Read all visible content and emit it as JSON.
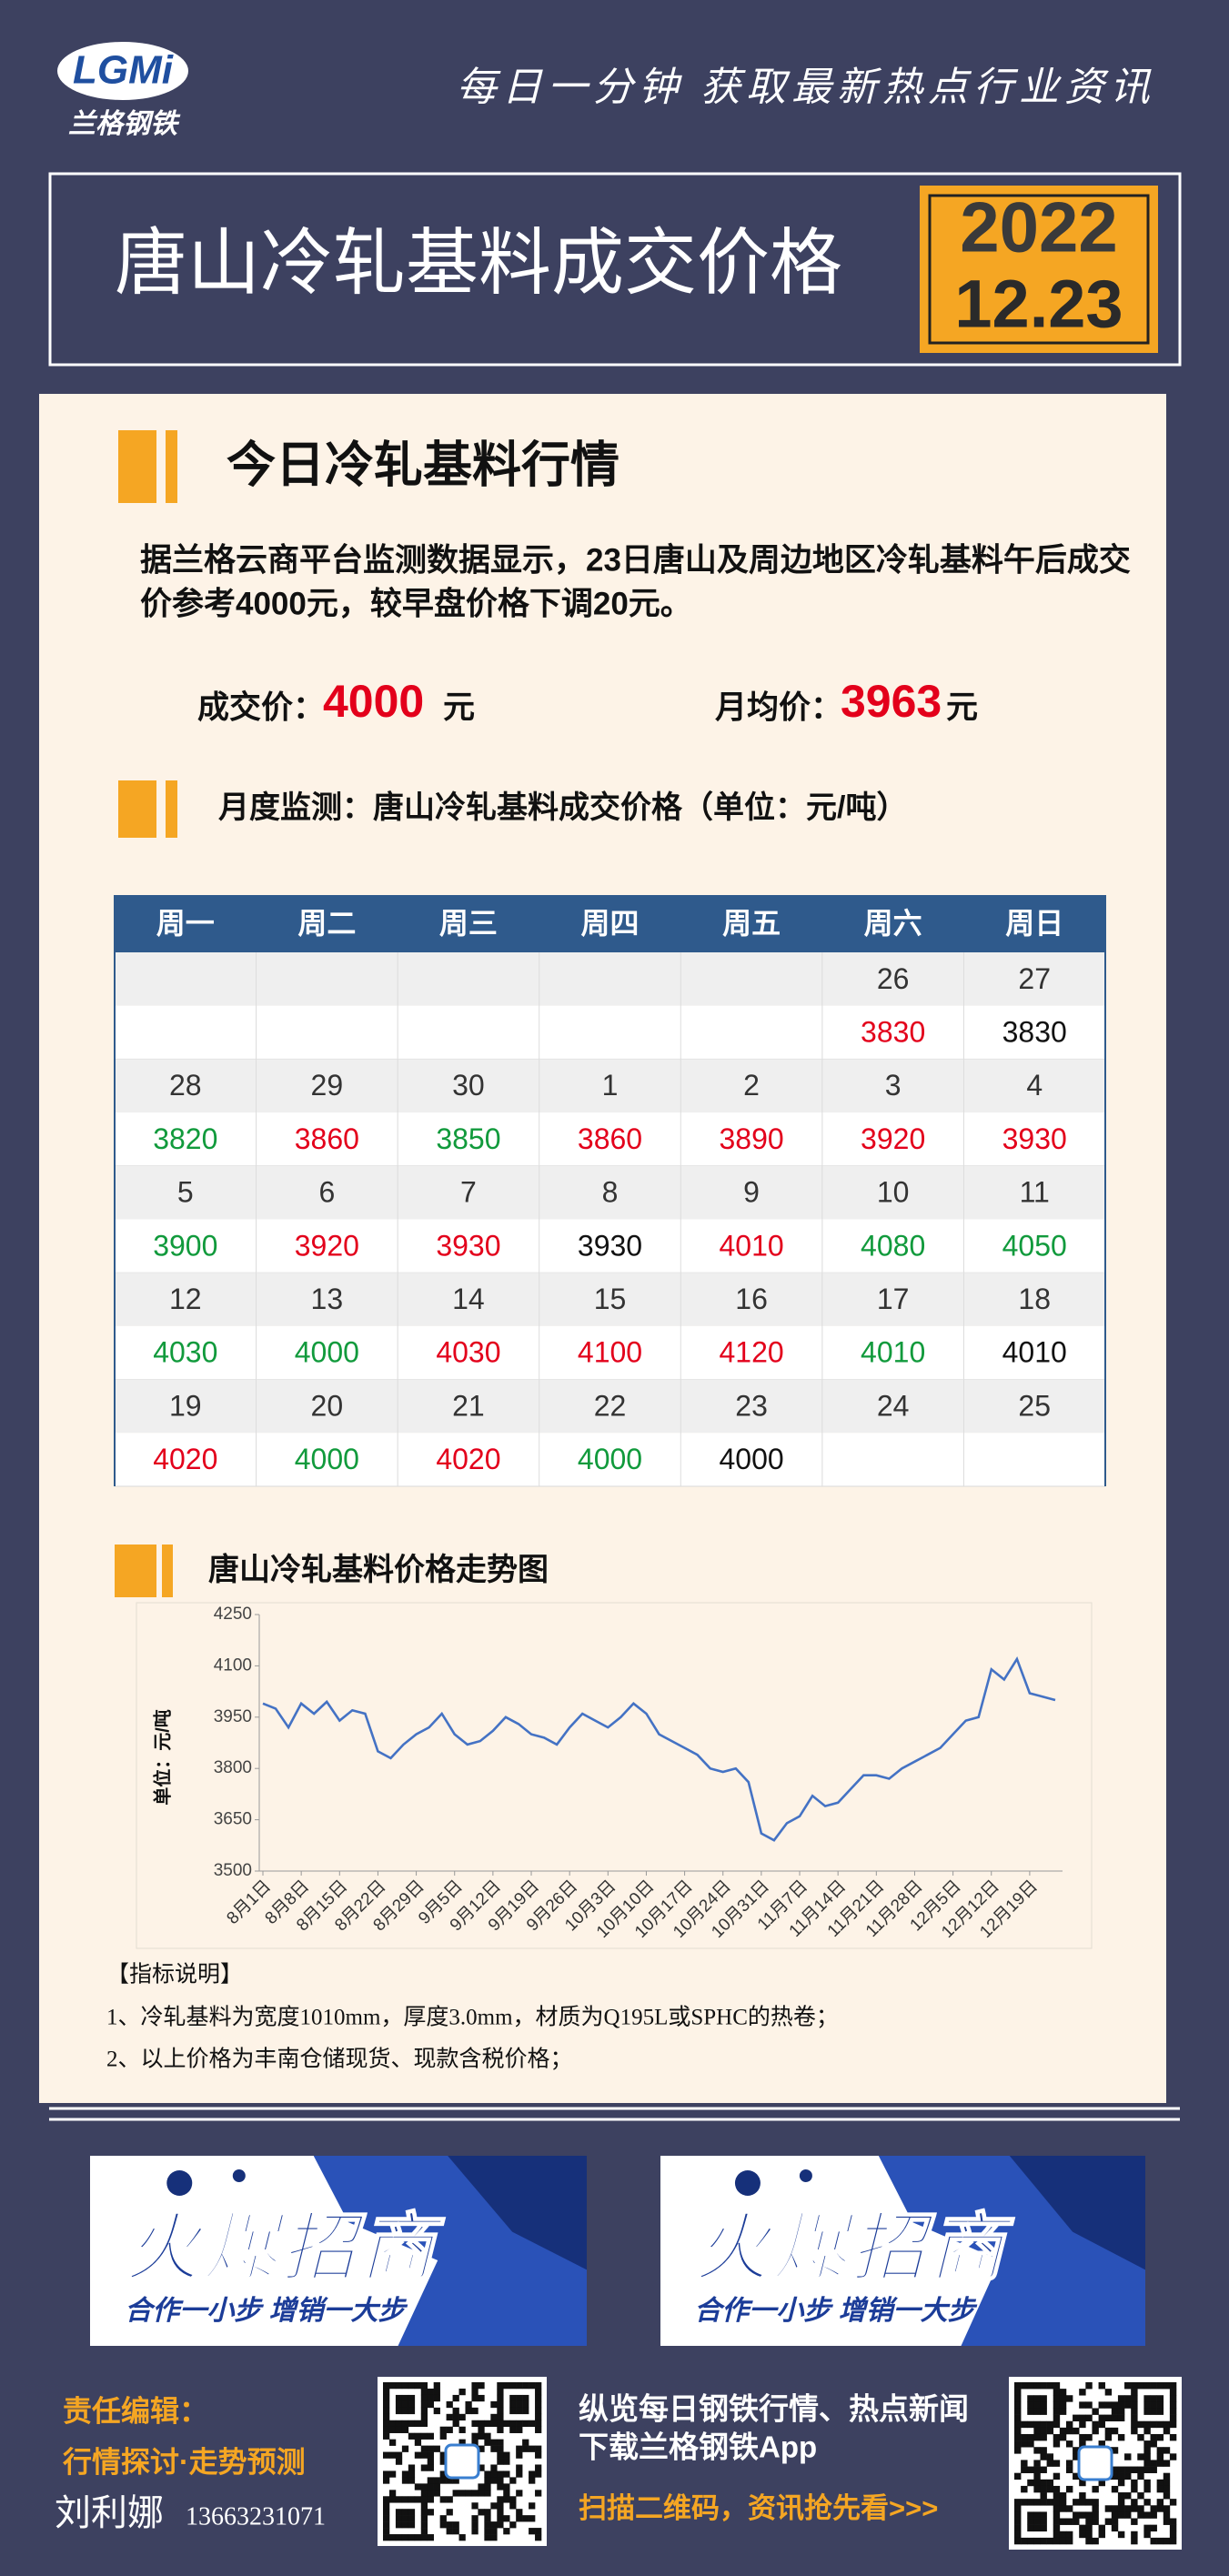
{
  "header": {
    "logo": "LGMi",
    "brand": "兰格钢铁",
    "slogan": "每日一分钟  获取最新热点行业资讯",
    "title": "唐山冷轧基料成交价格",
    "year": "2022",
    "date": "12.23"
  },
  "market": {
    "heading": "今日冷轧基料行情",
    "text": [
      "据兰格云商平台监测数据显示，23日唐山及周边地区冷轧基料午后成交",
      "价参考4000元，较早盘价格下调20元。"
    ],
    "deal": {
      "label": "成交价：",
      "value": 4000,
      "unit": "元"
    },
    "average": {
      "label": "月均价：",
      "value": 3963,
      "unit": "元"
    }
  },
  "table": {
    "heading": "月度监测：唐山冷轧基料成交价格（单位：元/吨）",
    "columns": [
      "周一",
      "周二",
      "周三",
      "周四",
      "周五",
      "周六",
      "周日"
    ],
    "weeks": [
      {
        "days": [
          null,
          null,
          null,
          null,
          null,
          26,
          27
        ],
        "prices": [
          null,
          null,
          null,
          null,
          null,
          3830,
          3830
        ],
        "colors": [
          null,
          null,
          null,
          null,
          null,
          "#e3001b",
          "#111111"
        ]
      },
      {
        "days": [
          28,
          29,
          30,
          1,
          2,
          3,
          4
        ],
        "prices": [
          3820,
          3860,
          3850,
          3860,
          3890,
          3920,
          3930
        ],
        "colors": [
          "#119a3c",
          "#e3001b",
          "#119a3c",
          "#e3001b",
          "#e3001b",
          "#e3001b",
          "#e3001b"
        ]
      },
      {
        "days": [
          5,
          6,
          7,
          8,
          9,
          10,
          11
        ],
        "prices": [
          3900,
          3920,
          3930,
          3930,
          4010,
          4080,
          4050
        ],
        "colors": [
          "#119a3c",
          "#e3001b",
          "#e3001b",
          "#111111",
          "#e3001b",
          "#119a3c",
          "#119a3c"
        ]
      },
      {
        "days": [
          12,
          13,
          14,
          15,
          16,
          17,
          18
        ],
        "prices": [
          4030,
          4000,
          4030,
          4100,
          4120,
          4010,
          4010
        ],
        "colors": [
          "#119a3c",
          "#119a3c",
          "#e3001b",
          "#e3001b",
          "#e3001b",
          "#119a3c",
          "#111111"
        ]
      },
      {
        "days": [
          19,
          20,
          21,
          22,
          23,
          24,
          25
        ],
        "prices": [
          4020,
          4000,
          4020,
          4000,
          4000,
          null,
          null
        ],
        "colors": [
          "#e3001b",
          "#119a3c",
          "#e3001b",
          "#119a3c",
          "#111111",
          null,
          null
        ]
      }
    ]
  },
  "chart_data": {
    "type": "line",
    "title": "唐山冷轧基料价格走势图",
    "ylabel": "单位：元/吨",
    "color": "#4472c4",
    "grid": false,
    "ylim": [
      3500,
      4250
    ],
    "yticks": [
      3500,
      3650,
      3800,
      3950,
      4100,
      4250
    ],
    "categories": [
      "8月1日",
      null,
      null,
      "8月8日",
      null,
      null,
      "8月15日",
      null,
      null,
      "8月22日",
      null,
      null,
      "8月29日",
      null,
      null,
      "9月5日",
      null,
      null,
      "9月12日",
      null,
      null,
      "9月19日",
      null,
      null,
      "9月26日",
      null,
      null,
      "10月3日",
      null,
      null,
      "10月10日",
      null,
      null,
      "10月17日",
      null,
      null,
      "10月24日",
      null,
      null,
      "10月31日",
      null,
      null,
      "11月7日",
      null,
      null,
      "11月14日",
      null,
      null,
      "11月21日",
      null,
      null,
      "11月28日",
      null,
      null,
      "12月5日",
      null,
      null,
      "12月12日",
      null,
      null,
      "12月19日",
      null,
      null
    ],
    "values": [
      3990,
      3975,
      3920,
      3990,
      3960,
      3995,
      3940,
      3970,
      3960,
      3850,
      3830,
      3870,
      3900,
      3920,
      3960,
      3900,
      3870,
      3880,
      3910,
      3950,
      3930,
      3900,
      3890,
      3870,
      3920,
      3960,
      3940,
      3920,
      3950,
      3990,
      3960,
      3900,
      3880,
      3860,
      3840,
      3800,
      3790,
      3800,
      3760,
      3610,
      3590,
      3640,
      3660,
      3720,
      3690,
      3700,
      3740,
      3780,
      3780,
      3770,
      3800,
      3820,
      3840,
      3860,
      3900,
      3940,
      3950,
      4090,
      4060,
      4120,
      4020,
      4010,
      4000
    ]
  },
  "notes": {
    "title": "【指标说明】",
    "items": [
      "1、冷轧基料为宽度1010mm，厚度3.0mm，材质为Q195L或SPHC的热卷；",
      "2、以上价格为丰南仓储现货、现款含税价格；"
    ]
  },
  "ads": [
    {
      "title": "火爆招商",
      "slogan": "合作一小步  增销一大步"
    },
    {
      "title": "火爆招商",
      "slogan": "合作一小步  增销一大步"
    }
  ],
  "footer": {
    "editor_label": "责任编辑：",
    "topic": "行情探讨·走势预测",
    "editor": "刘利娜",
    "phone": "13663231071",
    "promo": [
      "纵览每日钢铁行情、热点新闻",
      "下载兰格钢铁App"
    ],
    "cta": "扫描二维码，资讯抢先看>>>"
  }
}
